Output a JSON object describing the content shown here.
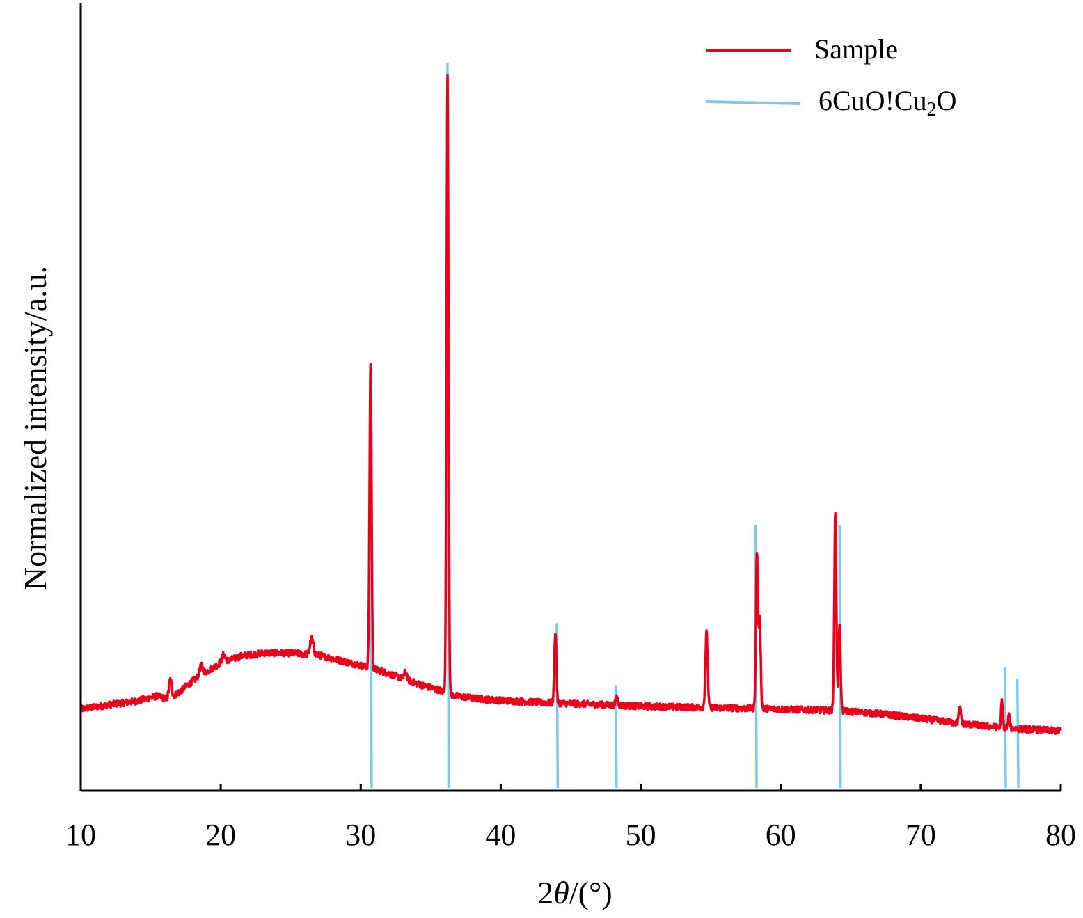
{
  "chart_data": {
    "type": "line",
    "xlabel_prefix": "2",
    "xlabel_symbol": "θ",
    "xlabel_suffix": "/(°)",
    "ylabel": "Normalized intensity/a.u.",
    "xlim": [
      10,
      80
    ],
    "ylim": [
      0,
      100
    ],
    "xticks": [
      "10",
      "20",
      "30",
      "40",
      "50",
      "60",
      "70",
      "80"
    ],
    "legend_placement": "top-right",
    "colors": {
      "sample": "#e8001c",
      "reference": "#7ec8ec"
    },
    "series": [
      {
        "name": "Sample",
        "kind": "line",
        "baseline": [
          [
            10,
            11.2
          ],
          [
            12,
            11.8
          ],
          [
            14,
            12.3
          ],
          [
            15.5,
            13.0
          ],
          [
            16.3,
            12.5
          ],
          [
            17.0,
            13.5
          ],
          [
            18.5,
            15.8
          ],
          [
            20,
            17.5
          ],
          [
            21.5,
            18.5
          ],
          [
            23,
            18.9
          ],
          [
            25,
            18.9
          ],
          [
            27,
            18.6
          ],
          [
            28.5,
            17.9
          ],
          [
            30,
            17.2
          ],
          [
            31.5,
            16.4
          ],
          [
            33,
            15.4
          ],
          [
            34.5,
            14.4
          ],
          [
            35.5,
            13.9
          ],
          [
            36.5,
            13.1
          ],
          [
            38,
            12.7
          ],
          [
            40,
            12.4
          ],
          [
            43,
            12.1
          ],
          [
            46,
            11.9
          ],
          [
            50,
            11.6
          ],
          [
            55,
            11.4
          ],
          [
            60,
            11.2
          ],
          [
            64,
            11.0
          ],
          [
            67,
            10.6
          ],
          [
            70,
            9.9
          ],
          [
            73,
            9.2
          ],
          [
            76,
            8.6
          ],
          [
            80,
            8.2
          ]
        ],
        "peaks": [
          [
            16.4,
            2.6,
            0.1
          ],
          [
            18.6,
            1.2,
            0.12
          ],
          [
            20.2,
            1.0,
            0.12
          ],
          [
            26.5,
            2.2,
            0.12
          ],
          [
            30.7,
            42.0,
            0.07
          ],
          [
            33.2,
            1.0,
            0.1
          ],
          [
            36.2,
            85.0,
            0.07
          ],
          [
            43.9,
            9.8,
            0.07
          ],
          [
            48.3,
            1.2,
            0.08
          ],
          [
            54.7,
            10.2,
            0.08
          ],
          [
            58.3,
            21.5,
            0.07
          ],
          [
            58.5,
            12.0,
            0.07
          ],
          [
            63.9,
            27.5,
            0.07
          ],
          [
            64.2,
            12.0,
            0.07
          ],
          [
            72.8,
            2.0,
            0.08
          ],
          [
            75.8,
            3.6,
            0.06
          ],
          [
            76.3,
            1.8,
            0.06
          ]
        ]
      },
      {
        "name": "6CuO!Cu₂O",
        "legend_main": "6CuO!Cu",
        "legend_sub": "2",
        "legend_tail": "O",
        "kind": "sticks",
        "sticks": [
          {
            "x": 30.7,
            "y": 56.0
          },
          {
            "x": 36.2,
            "y": 100.0
          },
          {
            "x": 44.0,
            "y": 23.0
          },
          {
            "x": 48.2,
            "y": 14.5
          },
          {
            "x": 58.2,
            "y": 36.5
          },
          {
            "x": 64.2,
            "y": 36.5
          },
          {
            "x": 76.0,
            "y": 16.9
          },
          {
            "x": 76.9,
            "y": 15.4
          }
        ]
      }
    ]
  }
}
